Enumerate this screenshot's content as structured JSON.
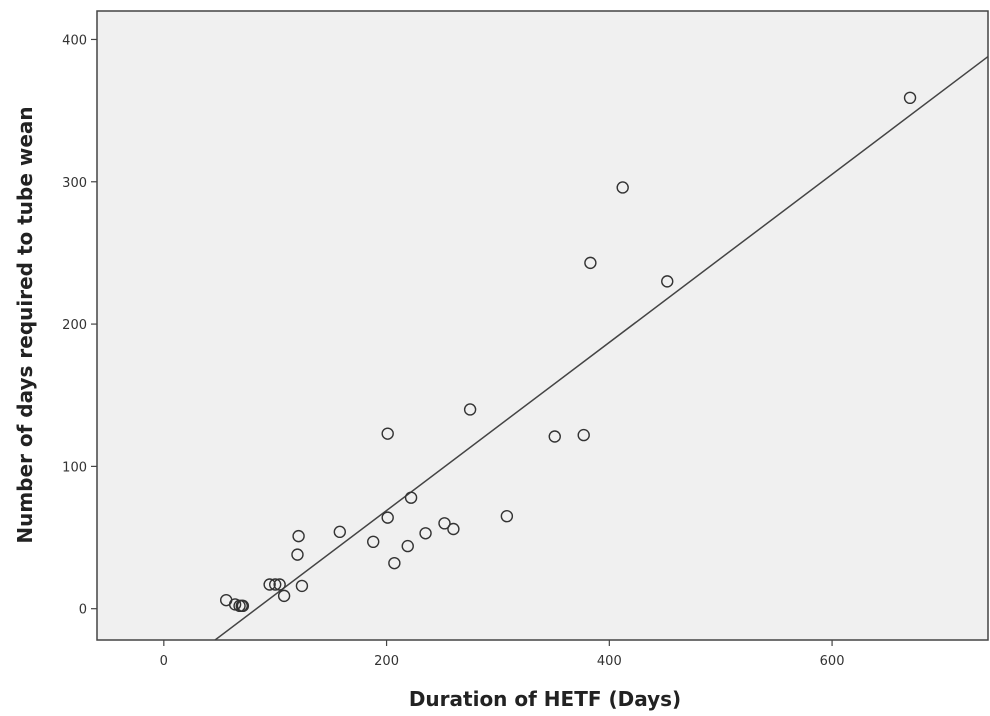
{
  "chart_data": {
    "type": "scatter",
    "title": "",
    "xlabel": "Duration of HETF (Days)",
    "ylabel": "Number of days required to tube wean",
    "xlim": [
      -60,
      740
    ],
    "ylim": [
      -22,
      420
    ],
    "x_ticks": [
      0,
      200,
      400,
      600
    ],
    "x_tick_labels": [
      "0",
      "200",
      "400",
      "600"
    ],
    "y_ticks": [
      0,
      100,
      200,
      300,
      400
    ],
    "y_tick_labels": [
      "0",
      "100",
      "200",
      "300",
      "400"
    ],
    "grid": false,
    "legend": "none",
    "colors": {
      "plot_background": "#f0f0f0",
      "marker_edge": "#333333",
      "fit_line": "#444444",
      "frame": "#444444"
    },
    "points": [
      {
        "x": 56,
        "y": 6
      },
      {
        "x": 64,
        "y": 3
      },
      {
        "x": 68,
        "y": 2
      },
      {
        "x": 70,
        "y": 2
      },
      {
        "x": 71,
        "y": 2
      },
      {
        "x": 95,
        "y": 17
      },
      {
        "x": 100,
        "y": 17
      },
      {
        "x": 104,
        "y": 17
      },
      {
        "x": 108,
        "y": 9
      },
      {
        "x": 120,
        "y": 38
      },
      {
        "x": 121,
        "y": 51
      },
      {
        "x": 124,
        "y": 16
      },
      {
        "x": 158,
        "y": 54
      },
      {
        "x": 188,
        "y": 47
      },
      {
        "x": 201,
        "y": 64
      },
      {
        "x": 201,
        "y": 123
      },
      {
        "x": 207,
        "y": 32
      },
      {
        "x": 219,
        "y": 44
      },
      {
        "x": 222,
        "y": 78
      },
      {
        "x": 235,
        "y": 53
      },
      {
        "x": 252,
        "y": 60
      },
      {
        "x": 260,
        "y": 56
      },
      {
        "x": 275,
        "y": 140
      },
      {
        "x": 308,
        "y": 65
      },
      {
        "x": 351,
        "y": 121
      },
      {
        "x": 377,
        "y": 122
      },
      {
        "x": 383,
        "y": 243
      },
      {
        "x": 412,
        "y": 296
      },
      {
        "x": 452,
        "y": 230
      },
      {
        "x": 670,
        "y": 359
      }
    ],
    "fit_line": {
      "type": "linear",
      "x": [
        46,
        740
      ],
      "y": [
        -22,
        388
      ]
    }
  }
}
